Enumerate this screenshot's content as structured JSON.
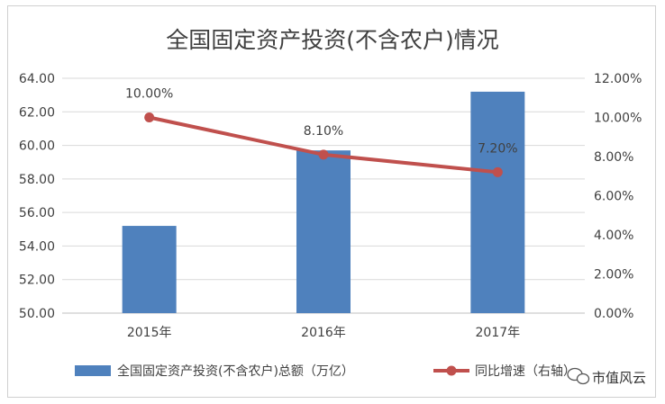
{
  "chart_data": {
    "type": "bar",
    "title": "全国固定资产投资(不含农户)情况",
    "categories": [
      "2015年",
      "2016年",
      "2017年"
    ],
    "series": [
      {
        "name": "全国固定资产投资(不含农户)总额（万亿）",
        "type": "bar",
        "axis": "left",
        "values": [
          55.2,
          59.7,
          63.2
        ],
        "color": "#4f81bd"
      },
      {
        "name": "同比增速（右轴）",
        "type": "line",
        "axis": "right",
        "values": [
          10.0,
          8.1,
          7.2
        ],
        "data_labels": [
          "10.00%",
          "8.10%",
          "7.20%"
        ],
        "color": "#c0504d"
      }
    ],
    "y_left": {
      "range": [
        50,
        64
      ],
      "ticks": [
        "50.00",
        "52.00",
        "54.00",
        "56.00",
        "58.00",
        "60.00",
        "62.00",
        "64.00"
      ]
    },
    "y_right": {
      "range": [
        0,
        12
      ],
      "ticks": [
        "0.00%",
        "2.00%",
        "4.00%",
        "6.00%",
        "8.00%",
        "10.00%",
        "12.00%"
      ]
    },
    "grid": true,
    "legend": "bottom"
  },
  "watermark": {
    "text": "市值风云",
    "icon": "wechat-icon"
  }
}
